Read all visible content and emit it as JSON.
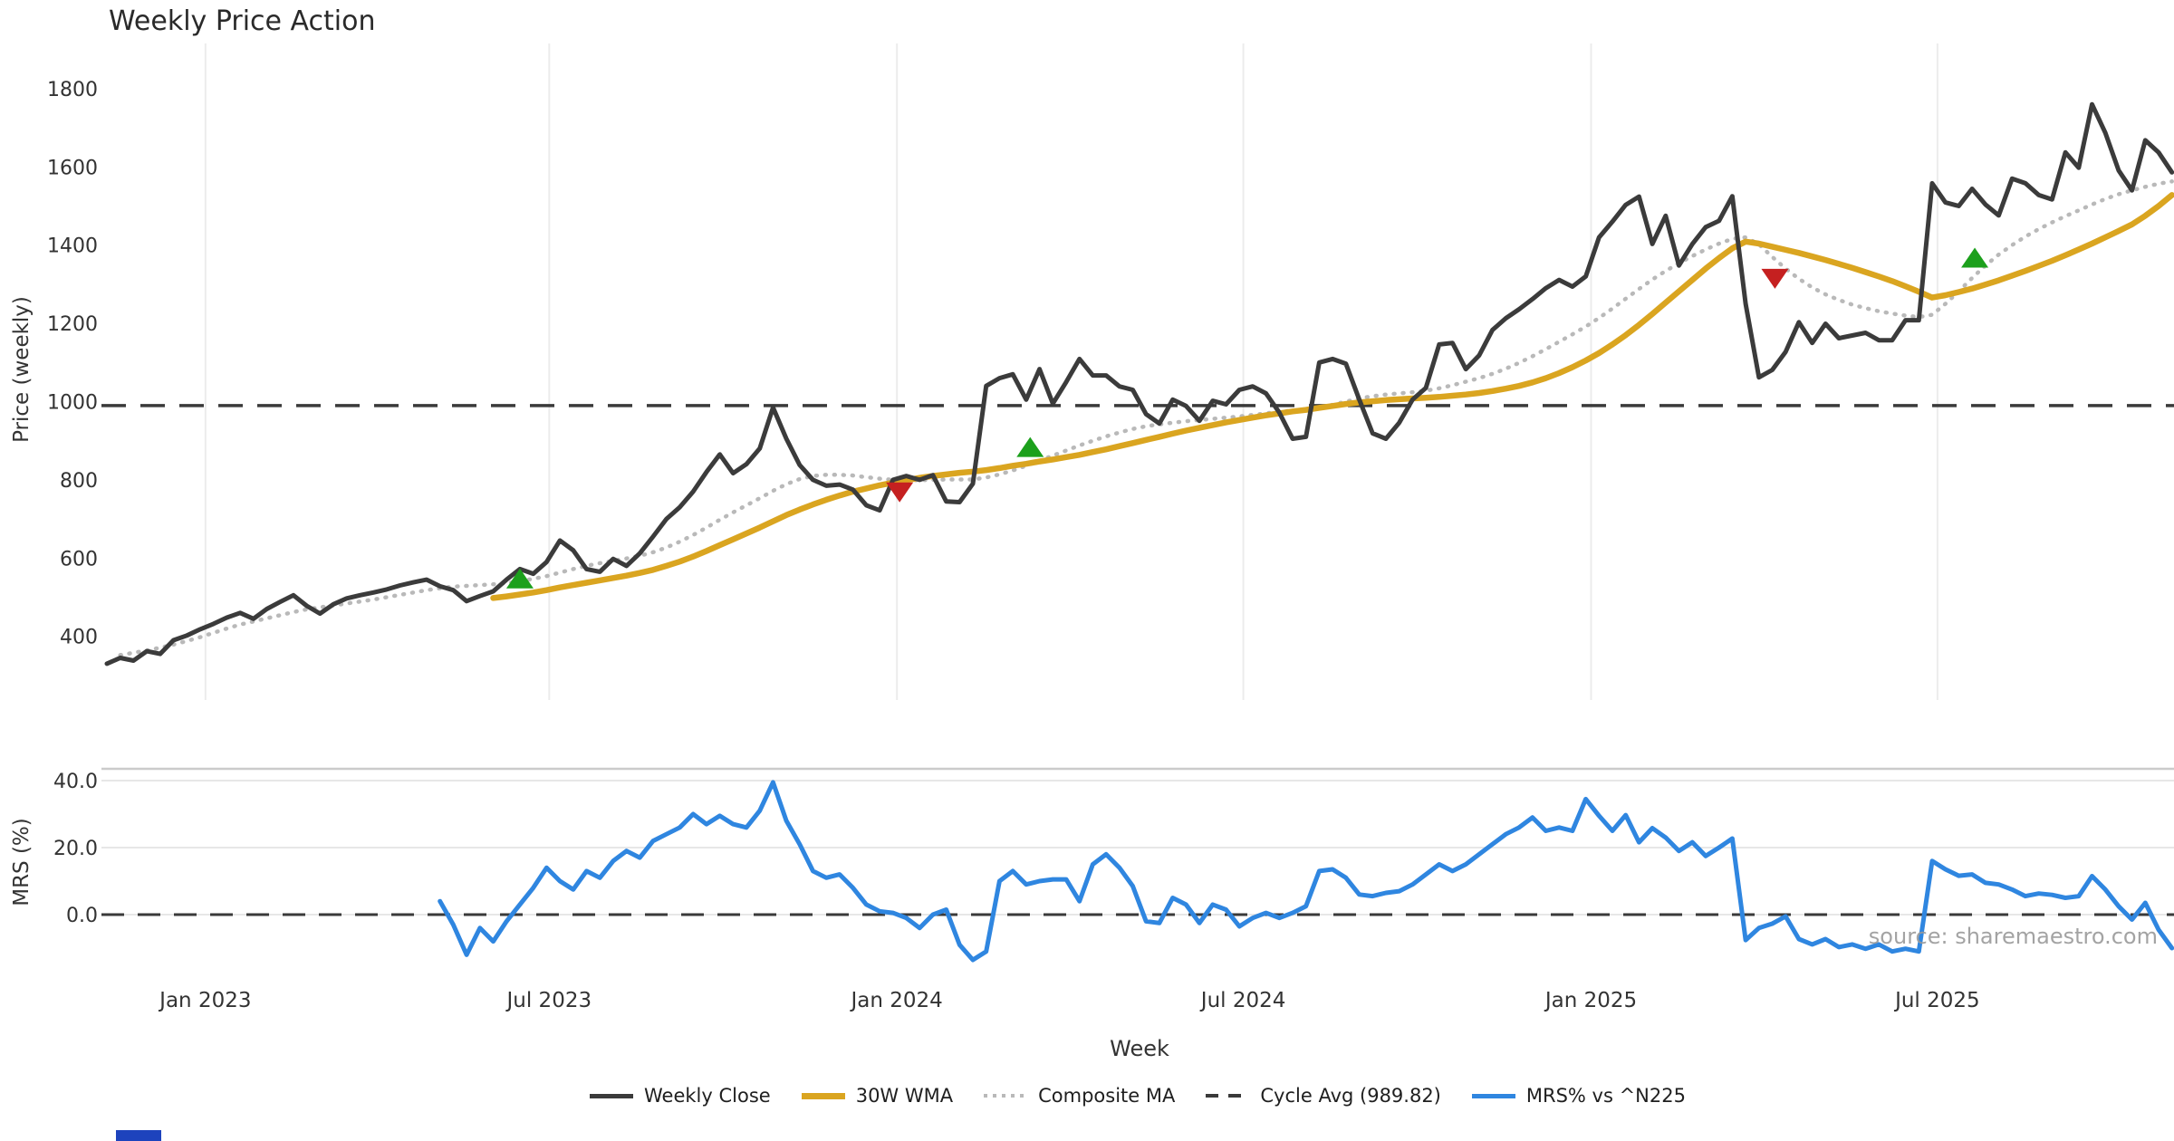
{
  "header": {
    "title": "Weekly Price Action"
  },
  "watermark": "source: sharemaestro.com",
  "xaxis": {
    "label": "Week"
  },
  "price_panel": {
    "ylabel": "Price (weekly)"
  },
  "mrs_panel": {
    "ylabel": "MRS (%)"
  },
  "colors": {
    "weekly_close": "#3B3B3B",
    "wma": "#DAA520",
    "composite": "#B9B9B9",
    "cycle_avg": "#3A3A3A",
    "mrs": "#2F86E0",
    "buy_marker": "#1CA01C",
    "sell_marker": "#C52020",
    "grid_vertical": "#ECECEC",
    "grid_horizontal": "#E7E7E7",
    "panel_spine": "#CBCBCB",
    "tick_text": "#333333"
  },
  "legend": {
    "items": [
      {
        "label": "Weekly Close",
        "series": "weekly-close",
        "style": "solid",
        "color": "#3B3B3B",
        "thickness": 5
      },
      {
        "label": "30W WMA",
        "series": "wma",
        "style": "solid",
        "color": "#DAA520",
        "thickness": 7
      },
      {
        "label": "Composite MA",
        "series": "composite-ma",
        "style": "dotted",
        "color": "#B9B9B9",
        "thickness": 4
      },
      {
        "label": "Cycle Avg (989.82)",
        "series": "cycle-avg",
        "style": "dashed",
        "color": "#3A3A3A",
        "thickness": 4
      },
      {
        "label": "MRS% vs ^N225",
        "series": "mrs",
        "style": "solid",
        "color": "#2F86E0",
        "thickness": 5
      }
    ]
  },
  "chart_data": [
    {
      "type": "line",
      "panel": "price",
      "title": "Weekly Price Action",
      "xlabel": "Week",
      "ylabel": "Price (weekly)",
      "x_tick_labels": [
        "Jan 2023",
        "Jul 2023",
        "Jan 2024",
        "Jul 2024",
        "Jan 2025",
        "Jul 2025"
      ],
      "x_tick_week_index": [
        7.4,
        33.2,
        59.3,
        85.3,
        111.4,
        137.4
      ],
      "y_ticks": [
        1800,
        1600,
        1400,
        1200,
        1000,
        800,
        600,
        400
      ],
      "ylim": [
        240,
        1900
      ],
      "grid": "vertical-only",
      "reference_line": {
        "name": "Cycle Avg",
        "value": 989.82
      },
      "series": [
        {
          "name": "Weekly Close",
          "start_week": 0,
          "values": [
            330,
            345,
            338,
            362,
            355,
            390,
            402,
            418,
            432,
            448,
            460,
            445,
            470,
            488,
            505,
            478,
            458,
            482,
            497,
            505,
            512,
            520,
            530,
            538,
            545,
            528,
            518,
            490,
            503,
            515,
            545,
            572,
            560,
            590,
            645,
            620,
            572,
            565,
            598,
            580,
            612,
            655,
            700,
            730,
            770,
            820,
            865,
            817,
            840,
            880,
            985,
            905,
            838,
            800,
            785,
            788,
            775,
            735,
            722,
            800,
            810,
            800,
            812,
            745,
            743,
            790,
            1040,
            1060,
            1070,
            1005,
            1083,
            995,
            1050,
            1109,
            1067,
            1067,
            1039,
            1030,
            968,
            944,
            1005,
            989,
            951,
            1002,
            993,
            1030,
            1039,
            1021,
            972,
            905,
            910,
            1100,
            1109,
            1097,
            1005,
            919,
            905,
            946,
            1005,
            1035,
            1146,
            1150,
            1083,
            1118,
            1183,
            1213,
            1236,
            1262,
            1290,
            1311,
            1294,
            1320,
            1420,
            1460,
            1503,
            1524,
            1403,
            1475,
            1348,
            1403,
            1446,
            1462,
            1525,
            1250,
            1062,
            1081,
            1127,
            1203,
            1150,
            1199,
            1162,
            1169,
            1176,
            1157,
            1157,
            1208,
            1208,
            1558,
            1509,
            1500,
            1544,
            1504,
            1476,
            1570,
            1558,
            1528,
            1517,
            1637,
            1598,
            1760,
            1687,
            1591,
            1540,
            1668,
            1637,
            1586
          ]
        },
        {
          "name": "30W WMA",
          "start_week": 29,
          "values": [
            498,
            502,
            507,
            512,
            518,
            525,
            531,
            537,
            543,
            549,
            555,
            562,
            570,
            580,
            591,
            604,
            618,
            633,
            648,
            663,
            678,
            694,
            710,
            724,
            737,
            749,
            760,
            770,
            778,
            786,
            793,
            799,
            805,
            810,
            814,
            818,
            821,
            825,
            830,
            836,
            841,
            847,
            852,
            858,
            864,
            871,
            878,
            886,
            894,
            902,
            910,
            918,
            926,
            933,
            940,
            947,
            953,
            959,
            965,
            970,
            975,
            979,
            984,
            989,
            994,
            998,
            1001,
            1004,
            1006,
            1008,
            1010,
            1012,
            1015,
            1018,
            1022,
            1027,
            1033,
            1040,
            1049,
            1060,
            1073,
            1088,
            1105,
            1124,
            1146,
            1170,
            1196,
            1224,
            1253,
            1282,
            1311,
            1340,
            1367,
            1392,
            1409,
            1404,
            1396,
            1388,
            1380,
            1371,
            1362,
            1352,
            1342,
            1331,
            1320,
            1308,
            1295,
            1281,
            1266,
            1272,
            1280,
            1289,
            1299,
            1310,
            1322,
            1334,
            1347,
            1360,
            1374,
            1389,
            1404,
            1420,
            1436,
            1453,
            1475,
            1500,
            1528
          ]
        },
        {
          "name": "Composite MA",
          "start_week": 1,
          "values": [
            352,
            358,
            364,
            371,
            379,
            388,
            398,
            409,
            420,
            430,
            438,
            446,
            454,
            462,
            469,
            474,
            479,
            484,
            489,
            494,
            500,
            506,
            512,
            518,
            523,
            527,
            529,
            531,
            533,
            536,
            541,
            547,
            554,
            563,
            572,
            580,
            587,
            593,
            599,
            606,
            615,
            627,
            642,
            659,
            678,
            698,
            717,
            735,
            753,
            772,
            789,
            802,
            810,
            813,
            813,
            811,
            807,
            803,
            800,
            799,
            799,
            800,
            801,
            801,
            801,
            806,
            814,
            824,
            836,
            849,
            862,
            875,
            888,
            900,
            911,
            921,
            930,
            937,
            942,
            946,
            950,
            953,
            956,
            959,
            962,
            966,
            970,
            974,
            977,
            980,
            985,
            992,
            1000,
            1008,
            1014,
            1018,
            1021,
            1024,
            1028,
            1034,
            1042,
            1051,
            1060,
            1071,
            1084,
            1099,
            1116,
            1134,
            1153,
            1172,
            1192,
            1214,
            1238,
            1263,
            1288,
            1312,
            1334,
            1354,
            1372,
            1389,
            1404,
            1416,
            1420,
            1402,
            1370,
            1340,
            1314,
            1292,
            1274,
            1260,
            1248,
            1239,
            1231,
            1225,
            1220,
            1216,
            1222,
            1250,
            1282,
            1316,
            1348,
            1376,
            1400,
            1422,
            1441,
            1458,
            1474,
            1489,
            1504,
            1518,
            1530,
            1540,
            1549,
            1557,
            1563
          ]
        }
      ],
      "markers": [
        {
          "type": "buy",
          "week": 31,
          "value": 548
        },
        {
          "type": "sell",
          "week": 59.5,
          "value": 768
        },
        {
          "type": "buy",
          "week": 69.3,
          "value": 884
        },
        {
          "type": "sell",
          "week": 125.2,
          "value": 1314
        },
        {
          "type": "buy",
          "week": 140.2,
          "value": 1368
        }
      ]
    },
    {
      "type": "line",
      "panel": "mrs",
      "ylabel": "MRS (%)",
      "y_ticks": [
        40,
        20,
        0
      ],
      "y_tick_labels": [
        "40.0",
        "20.0",
        "0.0"
      ],
      "grid": "horizontal-only",
      "reference_line": {
        "name": "zero",
        "value": 0
      },
      "series": [
        {
          "name": "MRS% vs ^N225",
          "start_week": 25,
          "values": [
            4,
            -3,
            -12,
            -4,
            -8,
            -2,
            3,
            8,
            14,
            10,
            7.5,
            13,
            11,
            16,
            19,
            17,
            22,
            24,
            26,
            30,
            27,
            29.5,
            27,
            26,
            31,
            39.5,
            28,
            21,
            13,
            11,
            12,
            8,
            3,
            1,
            0.5,
            -1,
            -4,
            0,
            1.5,
            -9,
            -13.5,
            -11,
            10,
            13,
            9,
            10,
            10.5,
            10.5,
            4,
            15,
            18,
            14,
            8.5,
            -2,
            -2.5,
            5,
            3,
            -2.5,
            3,
            1.5,
            -3.5,
            -1,
            0.5,
            -1,
            0.5,
            2.5,
            13,
            13.5,
            11,
            6,
            5.5,
            6.5,
            7,
            9,
            12,
            15,
            13,
            15,
            18,
            21,
            24,
            26,
            29,
            25,
            26,
            25,
            34.5,
            29.5,
            25,
            29.7,
            21.6,
            25.8,
            23,
            19,
            21.6,
            17.5,
            20,
            22.7,
            -7.6,
            -4,
            -2.7,
            -0.5,
            -7.3,
            -8.9,
            -7.3,
            -9.7,
            -8.9,
            -10.2,
            -8.9,
            -11,
            -10.2,
            -11,
            16,
            13.5,
            11.6,
            12,
            9.5,
            9,
            7.5,
            5.5,
            6.3,
            5.9,
            5,
            5.5,
            11.5,
            7.5,
            2.5,
            -1.5,
            3.5,
            -4.5,
            -10
          ]
        }
      ]
    }
  ]
}
